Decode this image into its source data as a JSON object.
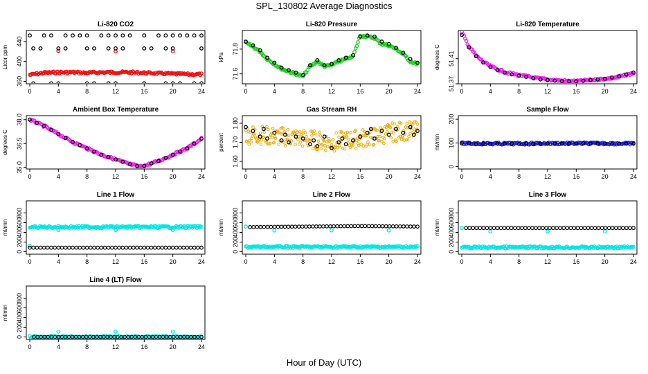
{
  "page_title": "SPL_130802  Average Diagnostics",
  "x_label": "Hour of Day (UTC)",
  "colors": {
    "black": "#000000",
    "red": "#ee1111",
    "green": "#22cc22",
    "magenta": "#ee22ee",
    "orange": "#f0a800",
    "cyan": "#00e5e5",
    "blue": "#1a1aee"
  },
  "chart_data": [
    {
      "type": "scatter",
      "title": "Li-820 CO2",
      "xlabel": "",
      "ylabel": "Licor ppm",
      "xlim": [
        0,
        24
      ],
      "ylim": [
        355,
        462
      ],
      "xticks": [
        0,
        4,
        8,
        12,
        16,
        20,
        24
      ],
      "yticks": [
        360,
        400,
        440
      ],
      "series": [
        {
          "color": "red",
          "kind": "dense",
          "x": [
            0,
            2,
            4,
            6,
            8,
            10,
            12,
            14,
            16,
            18,
            20,
            22,
            24
          ],
          "y": [
            373,
            377,
            378,
            378,
            377,
            378,
            378,
            378,
            377,
            376,
            375,
            374,
            374
          ]
        },
        {
          "color": "red",
          "kind": "points",
          "x": [
            4,
            12,
            20
          ],
          "y": [
            421,
            420,
            420
          ]
        },
        {
          "color": "black",
          "kind": "points",
          "x": [
            0,
            2,
            3,
            5,
            6,
            7,
            8,
            10,
            11,
            12,
            13,
            14,
            16,
            18,
            19,
            20,
            21,
            22,
            23,
            24,
            0.5,
            1.5,
            4,
            5,
            8,
            9,
            11,
            12,
            13,
            16,
            17,
            19,
            20,
            24,
            0.5,
            3,
            4,
            8,
            9,
            11,
            12,
            16,
            19,
            20,
            21,
            23,
            24
          ],
          "y": [
            452,
            452,
            452,
            452,
            452,
            452,
            452,
            452,
            452,
            452,
            452,
            452,
            452,
            452,
            452,
            452,
            452,
            452,
            452,
            452,
            426,
            426,
            426,
            426,
            426,
            426,
            426,
            426,
            426,
            426,
            426,
            426,
            426,
            426,
            356,
            356,
            356,
            356,
            356,
            356,
            356,
            356,
            356,
            356,
            356,
            356,
            356
          ]
        }
      ]
    },
    {
      "type": "scatter",
      "title": "Li-820 Pressure",
      "xlabel": "",
      "ylabel": "kPa",
      "xlim": [
        0,
        24
      ],
      "ylim": [
        71.52,
        71.95
      ],
      "xticks": [
        0,
        4,
        8,
        12,
        16,
        20,
        24
      ],
      "yticks": [
        71.6,
        71.8
      ],
      "series": [
        {
          "color": "green",
          "kind": "dense",
          "x": [
            0,
            1,
            2,
            3,
            4,
            5,
            6,
            7,
            8,
            9,
            10,
            11,
            12,
            13,
            14,
            15,
            16,
            17,
            18,
            19,
            20,
            21,
            22,
            23,
            24
          ],
          "y": [
            71.85,
            71.82,
            71.78,
            71.72,
            71.68,
            71.64,
            71.62,
            71.6,
            71.58,
            71.66,
            71.7,
            71.66,
            71.67,
            71.7,
            71.72,
            71.74,
            71.91,
            71.9,
            71.89,
            71.84,
            71.83,
            71.8,
            71.76,
            71.7,
            71.68
          ]
        },
        {
          "color": "black",
          "kind": "points",
          "x": [
            0,
            1,
            2,
            3,
            4,
            5,
            6,
            7,
            8,
            9,
            10,
            11,
            12,
            13,
            14,
            15,
            16,
            17,
            18,
            19,
            20,
            21,
            22,
            23,
            24
          ],
          "y": [
            71.86,
            71.83,
            71.79,
            71.73,
            71.69,
            71.65,
            71.63,
            71.61,
            71.59,
            71.67,
            71.71,
            71.67,
            71.68,
            71.71,
            71.73,
            71.75,
            71.9,
            71.91,
            71.9,
            71.86,
            71.84,
            71.81,
            71.77,
            71.72,
            71.69
          ]
        }
      ]
    },
    {
      "type": "scatter",
      "title": "Li-820 Temperature",
      "xlabel": "",
      "ylabel": "degrees C",
      "xlim": [
        0,
        24
      ],
      "ylim": [
        51.37,
        51.455
      ],
      "xticks": [
        0,
        4,
        8,
        12,
        16,
        20,
        24
      ],
      "yticks": [
        51.37,
        51.41
      ],
      "ytick_labels": [
        "51.37",
        "51.41"
      ],
      "series": [
        {
          "color": "magenta",
          "kind": "dense",
          "x": [
            0,
            1,
            2,
            3,
            4,
            5,
            6,
            7,
            8,
            9,
            10,
            11,
            12,
            13,
            14,
            15,
            16,
            17,
            18,
            19,
            20,
            21,
            22,
            23,
            24
          ],
          "y": [
            51.452,
            51.43,
            51.415,
            51.405,
            51.398,
            51.393,
            51.389,
            51.386,
            51.384,
            51.382,
            51.38,
            51.378,
            51.377,
            51.376,
            51.375,
            51.374,
            51.374,
            51.375,
            51.376,
            51.377,
            51.378,
            51.379,
            51.381,
            51.384,
            51.387
          ]
        },
        {
          "color": "black",
          "kind": "points",
          "x": [
            0,
            1,
            2,
            3,
            4,
            5,
            6,
            7,
            8,
            9,
            10,
            11,
            12,
            13,
            14,
            15,
            16,
            17,
            18,
            19,
            20,
            21,
            22,
            23,
            24
          ],
          "y": [
            51.448,
            51.428,
            51.414,
            51.404,
            51.397,
            51.392,
            51.388,
            51.385,
            51.383,
            51.381,
            51.379,
            51.377,
            51.376,
            51.375,
            51.374,
            51.374,
            51.374,
            51.375,
            51.376,
            51.377,
            51.378,
            51.38,
            51.382,
            51.385,
            51.388
          ]
        }
      ]
    },
    {
      "type": "scatter",
      "title": "Ambient Box Temperature",
      "xlabel": "",
      "ylabel": "degrees C",
      "xlim": [
        0,
        24
      ],
      "ylim": [
        34.9,
        38.25
      ],
      "xticks": [
        0,
        4,
        8,
        12,
        16,
        20,
        24
      ],
      "yticks": [
        35.0,
        36.5,
        38.0
      ],
      "ytick_labels": [
        "35.0",
        "36.5",
        "38.0"
      ],
      "series": [
        {
          "color": "magenta",
          "kind": "dense",
          "x": [
            0,
            2,
            4,
            6,
            8,
            10,
            12,
            14,
            15.5,
            16,
            18,
            20,
            22,
            24
          ],
          "y": [
            38.0,
            37.6,
            37.1,
            36.6,
            36.2,
            35.8,
            35.5,
            35.2,
            35.05,
            35.1,
            35.4,
            35.8,
            36.2,
            36.8
          ]
        },
        {
          "color": "black",
          "kind": "points",
          "x": [
            0,
            1,
            2,
            3,
            4,
            5,
            6,
            7,
            8,
            9,
            10,
            11,
            12,
            13,
            14,
            15,
            16,
            17,
            18,
            19,
            20,
            21,
            22,
            23,
            24
          ],
          "y": [
            38.0,
            37.8,
            37.6,
            37.35,
            37.1,
            36.85,
            36.6,
            36.4,
            36.2,
            36.0,
            35.8,
            35.65,
            35.5,
            35.35,
            35.2,
            35.08,
            35.1,
            35.25,
            35.4,
            35.6,
            35.8,
            36.0,
            36.2,
            36.5,
            36.8
          ]
        }
      ]
    },
    {
      "type": "scatter",
      "title": "Gas Stream RH",
      "xlabel": "",
      "ylabel": "percent",
      "xlim": [
        0,
        24
      ],
      "ylim": [
        1.56,
        1.84
      ],
      "xticks": [
        0,
        4,
        8,
        12,
        16,
        20,
        24
      ],
      "yticks": [
        1.6,
        1.7,
        1.8
      ],
      "ytick_labels": [
        "1.60",
        "1.70",
        "1.80"
      ],
      "series": [
        {
          "color": "orange",
          "kind": "band",
          "x": [
            0,
            2,
            4,
            6,
            8,
            10,
            12,
            14,
            16,
            18,
            20,
            22,
            24
          ],
          "y": [
            1.74,
            1.74,
            1.73,
            1.73,
            1.72,
            1.71,
            1.7,
            1.71,
            1.72,
            1.73,
            1.75,
            1.76,
            1.76
          ],
          "spread": 0.05
        },
        {
          "color": "black",
          "kind": "points",
          "x": [
            0,
            1,
            2,
            2.5,
            3,
            4,
            5,
            5.5,
            6,
            7,
            8,
            9,
            9.5,
            10,
            11,
            12,
            13,
            13.5,
            14,
            15,
            16,
            17,
            17.5,
            18,
            19,
            20,
            21,
            22,
            23,
            23.5,
            24
          ],
          "y": [
            1.78,
            1.76,
            1.73,
            1.77,
            1.72,
            1.75,
            1.71,
            1.74,
            1.7,
            1.73,
            1.72,
            1.69,
            1.71,
            1.68,
            1.73,
            1.67,
            1.7,
            1.72,
            1.69,
            1.71,
            1.73,
            1.75,
            1.77,
            1.72,
            1.76,
            1.74,
            1.77,
            1.75,
            1.78,
            1.74,
            1.76
          ]
        }
      ]
    },
    {
      "type": "scatter",
      "title": "Sample Flow",
      "xlabel": "",
      "ylabel": "ml/min",
      "xlim": [
        0,
        24
      ],
      "ylim": [
        -10,
        215
      ],
      "xticks": [
        0,
        4,
        8,
        12,
        16,
        20,
        24
      ],
      "yticks": [
        0,
        100,
        200
      ],
      "series": [
        {
          "color": "blue",
          "kind": "dense",
          "x": [
            0,
            4,
            8,
            12,
            16,
            20,
            24
          ],
          "y": [
            98,
            97,
            97,
            98,
            98,
            98,
            97
          ]
        },
        {
          "color": "black",
          "kind": "points",
          "x": [
            0,
            1,
            2,
            3,
            4,
            5,
            6,
            7,
            8,
            9,
            10,
            11,
            12,
            13,
            14,
            15,
            16,
            17,
            18,
            19,
            20,
            21,
            22,
            23,
            24
          ],
          "y": [
            98,
            98,
            97,
            97,
            96,
            97,
            97,
            97,
            96,
            97,
            97,
            97,
            98,
            98,
            97,
            97,
            98,
            98,
            97,
            97,
            98,
            97,
            97,
            97,
            97
          ]
        }
      ]
    },
    {
      "type": "scatter",
      "title": "Line 1 Flow",
      "xlabel": "",
      "ylabel": "ml/min",
      "xlim": [
        0,
        24
      ],
      "ylim": [
        -50,
        1050
      ],
      "xticks": [
        0,
        4,
        8,
        12,
        16,
        20,
        24
      ],
      "yticks": [
        0,
        200,
        400,
        600,
        800
      ],
      "series": [
        {
          "color": "cyan",
          "kind": "dense",
          "x": [
            0,
            24
          ],
          "y": [
            510,
            510
          ]
        },
        {
          "color": "cyan",
          "kind": "points",
          "x": [
            4,
            12,
            20,
            0
          ],
          "y": [
            450,
            450,
            450,
            120
          ]
        },
        {
          "color": "black",
          "kind": "line_of_points",
          "x": [
            0,
            24
          ],
          "y": [
            85,
            85
          ]
        }
      ]
    },
    {
      "type": "scatter",
      "title": "Line 2 Flow",
      "xlabel": "",
      "ylabel": "ml/min",
      "xlim": [
        0,
        24
      ],
      "ylim": [
        -50,
        1050
      ],
      "xticks": [
        0,
        4,
        8,
        12,
        16,
        20,
        24
      ],
      "yticks": [
        0,
        200,
        400,
        600,
        800
      ],
      "series": [
        {
          "color": "cyan",
          "kind": "dense",
          "x": [
            0,
            24
          ],
          "y": [
            100,
            100
          ]
        },
        {
          "color": "cyan",
          "kind": "points",
          "x": [
            0,
            4,
            12,
            20
          ],
          "y": [
            520,
            440,
            440,
            440
          ]
        },
        {
          "color": "black",
          "kind": "line_of_points",
          "x": [
            0.6,
            16,
            24
          ],
          "y": [
            510,
            530,
            520
          ]
        }
      ]
    },
    {
      "type": "scatter",
      "title": "Line 3 Flow",
      "xlabel": "",
      "ylabel": "ml/min",
      "xlim": [
        0,
        24
      ],
      "ylim": [
        -50,
        1050
      ],
      "xticks": [
        0,
        4,
        8,
        12,
        16,
        20,
        24
      ],
      "yticks": [
        0,
        200,
        400,
        600,
        800
      ],
      "series": [
        {
          "color": "cyan",
          "kind": "dense",
          "x": [
            0,
            24
          ],
          "y": [
            90,
            90
          ]
        },
        {
          "color": "cyan",
          "kind": "points",
          "x": [
            0,
            4,
            12,
            20
          ],
          "y": [
            490,
            420,
            420,
            420
          ]
        },
        {
          "color": "black",
          "kind": "line_of_points",
          "x": [
            0.6,
            24
          ],
          "y": [
            490,
            490
          ]
        }
      ]
    },
    {
      "type": "scatter",
      "title": "Line 4 (LT) Flow",
      "xlabel": "",
      "ylabel": "ml/min",
      "xlim": [
        0,
        24
      ],
      "ylim": [
        -50,
        1050
      ],
      "xticks": [
        0,
        4,
        8,
        12,
        16,
        20,
        24
      ],
      "yticks": [
        0,
        200,
        400,
        600,
        800
      ],
      "series": [
        {
          "color": "cyan",
          "kind": "dense",
          "x": [
            0,
            24
          ],
          "y": [
            0,
            0
          ]
        },
        {
          "color": "cyan",
          "kind": "points",
          "x": [
            4,
            12,
            20
          ],
          "y": [
            110,
            110,
            110
          ]
        },
        {
          "color": "black",
          "kind": "line_of_points",
          "x": [
            0.6,
            24
          ],
          "y": [
            0,
            0
          ]
        }
      ]
    }
  ]
}
